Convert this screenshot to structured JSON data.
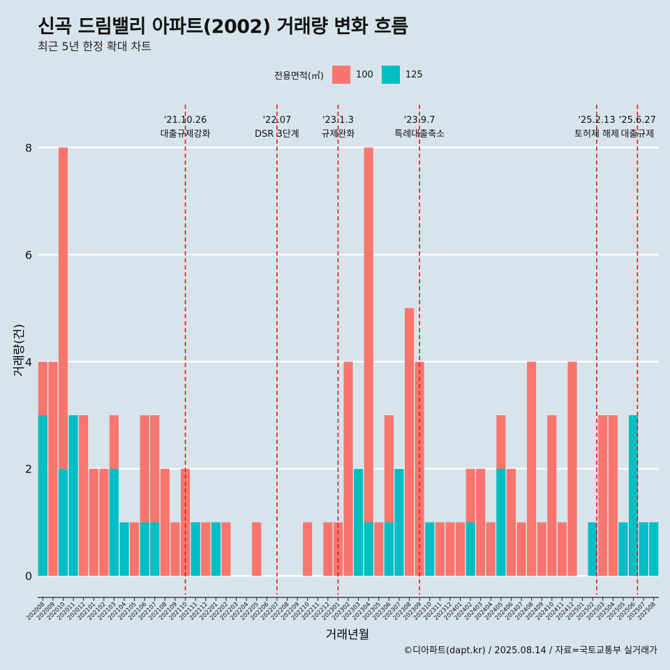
{
  "title": "신곡 드림밸리 아파트(2002) 거래량 변화 흐름",
  "subtitle": "최근 5년 한정 확대 차트",
  "legend": {
    "title": "전용면적(㎡)",
    "items": [
      {
        "label": "100",
        "color": "#F8766D"
      },
      {
        "label": "125",
        "color": "#00BFC4"
      }
    ]
  },
  "credit": "©디아파트(dapt.kr) / 2025.08.14 / 자료=국토교통부 실거래가",
  "chart_data": {
    "type": "bar",
    "title": "신곡 드림밸리 아파트(2002) 거래량 변화 흐름",
    "xlabel": "거래년월",
    "ylabel": "거래량(건)",
    "ylim": [
      -0.35,
      8.8
    ],
    "yticks": [
      0,
      2,
      4,
      6,
      8
    ],
    "categories": [
      "202008",
      "202009",
      "202010",
      "202011",
      "202012",
      "202101",
      "202102",
      "202103",
      "202104",
      "202105",
      "202106",
      "202107",
      "202108",
      "202109",
      "202110",
      "202111",
      "202112",
      "202201",
      "202202",
      "202203",
      "202204",
      "202205",
      "202206",
      "202207",
      "202208",
      "202209",
      "202210",
      "202211",
      "202212",
      "202301",
      "202302",
      "202303",
      "202304",
      "202305",
      "202306",
      "202307",
      "202308",
      "202309",
      "202310",
      "202311",
      "202312",
      "202401",
      "202402",
      "202403",
      "202404",
      "202405",
      "202406",
      "202407",
      "202408",
      "202409",
      "202410",
      "202411",
      "202412",
      "202501",
      "202502",
      "202503",
      "202504",
      "202505",
      "202506",
      "202507",
      "202508"
    ],
    "series": [
      {
        "name": "100",
        "color": "#F8766D",
        "values": [
          4,
          4,
          8,
          3,
          3,
          2,
          2,
          3,
          0,
          1,
          3,
          3,
          2,
          1,
          2,
          1,
          1,
          1,
          1,
          0,
          0,
          1,
          0,
          0,
          0,
          0,
          1,
          0,
          1,
          1,
          4,
          1,
          8,
          1,
          3,
          0,
          5,
          4,
          0,
          1,
          1,
          1,
          2,
          2,
          1,
          3,
          2,
          1,
          4,
          1,
          3,
          1,
          4,
          0,
          1,
          3,
          3,
          0,
          1,
          1,
          0
        ]
      },
      {
        "name": "125",
        "color": "#00BFC4",
        "values": [
          3,
          0,
          2,
          3,
          0,
          0,
          0,
          2,
          1,
          0,
          1,
          1,
          0,
          0,
          0,
          1,
          0,
          1,
          0,
          0,
          0,
          0,
          0,
          0,
          0,
          0,
          0,
          0,
          0,
          0,
          0,
          2,
          1,
          0,
          1,
          2,
          0,
          0,
          1,
          0,
          0,
          0,
          1,
          0,
          0,
          2,
          0,
          0,
          0,
          0,
          0,
          0,
          0,
          0,
          1,
          0,
          0,
          1,
          3,
          1,
          1
        ]
      }
    ],
    "events": [
      {
        "date": "'21.10.26",
        "label": "대출규제강화",
        "position": 14.0
      },
      {
        "date": "'22.07",
        "label": "DSR 3단계",
        "position": 23.0
      },
      {
        "date": "'23.1.3",
        "label": "규제완화",
        "position": 29.0
      },
      {
        "date": "'23.9.7",
        "label": "특례대출축소",
        "position": 37.0
      },
      {
        "date": "'25.2.13",
        "label": "토허제 해제",
        "position": 54.4
      },
      {
        "date": "'25.6.27",
        "label": "대출규제",
        "position": 58.4
      }
    ]
  }
}
